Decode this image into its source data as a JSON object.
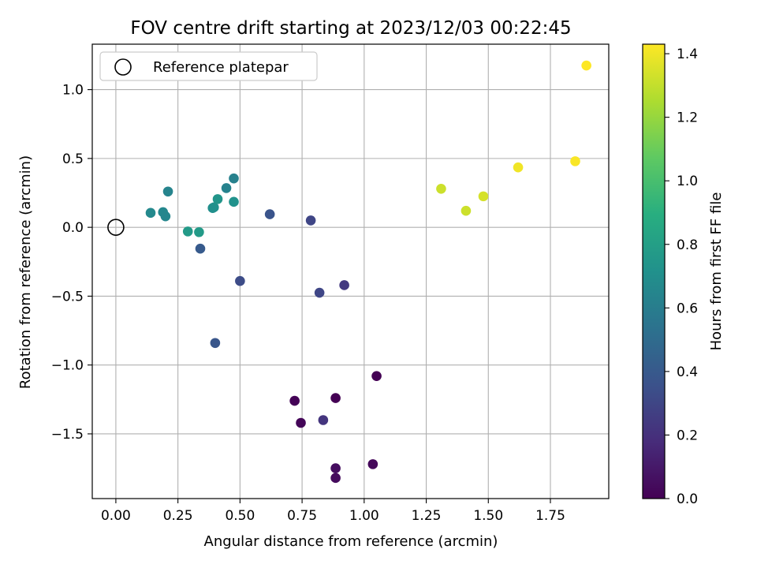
{
  "chart_data": {
    "type": "scatter",
    "title": "FOV centre drift starting at 2023/12/03 00:22:45",
    "xlabel": "Angular distance from reference (arcmin)",
    "ylabel": "Rotation from reference (arcmin)",
    "xlim": [
      -0.095,
      1.985
    ],
    "ylim": [
      -1.97,
      1.33
    ],
    "xticks": [
      0.0,
      0.25,
      0.5,
      0.75,
      1.0,
      1.25,
      1.5,
      1.75
    ],
    "xtick_labels": [
      "0.00",
      "0.25",
      "0.50",
      "0.75",
      "1.00",
      "1.25",
      "1.50",
      "1.75"
    ],
    "yticks": [
      1.0,
      0.5,
      0.0,
      -0.5,
      -1.0,
      -1.5
    ],
    "ytick_labels": [
      "1.0",
      "0.5",
      "0.0",
      "−0.5",
      "−1.0",
      "−1.5"
    ],
    "grid": true,
    "legend": {
      "placement": "top-left",
      "entries": [
        "Reference platepar"
      ]
    },
    "reference_point": {
      "x": 0.0,
      "y": 0.0,
      "marker": "open-circle"
    },
    "colorbar": {
      "label": "Hours from first FF file",
      "colormap": "viridis",
      "range": [
        0.0,
        1.43
      ],
      "ticks": [
        0.0,
        0.2,
        0.4,
        0.6,
        0.8,
        1.0,
        1.2,
        1.4
      ],
      "tick_labels": [
        "0.0",
        "0.2",
        "0.4",
        "0.6",
        "0.8",
        "1.0",
        "1.2",
        "1.4"
      ]
    },
    "points": [
      {
        "x": 0.885,
        "y": -1.82,
        "c": 0.04
      },
      {
        "x": 0.885,
        "y": -1.75,
        "c": 0.05
      },
      {
        "x": 1.035,
        "y": -1.72,
        "c": 0.03
      },
      {
        "x": 0.745,
        "y": -1.42,
        "c": 0.02
      },
      {
        "x": 0.72,
        "y": -1.26,
        "c": 0.01
      },
      {
        "x": 0.885,
        "y": -1.24,
        "c": 0.0
      },
      {
        "x": 1.05,
        "y": -1.08,
        "c": 0.0
      },
      {
        "x": 0.835,
        "y": -1.4,
        "c": 0.22
      },
      {
        "x": 0.4,
        "y": -0.84,
        "c": 0.38
      },
      {
        "x": 0.5,
        "y": -0.39,
        "c": 0.33
      },
      {
        "x": 0.82,
        "y": -0.475,
        "c": 0.3
      },
      {
        "x": 0.92,
        "y": -0.42,
        "c": 0.24
      },
      {
        "x": 0.34,
        "y": -0.155,
        "c": 0.4
      },
      {
        "x": 0.62,
        "y": 0.095,
        "c": 0.37
      },
      {
        "x": 0.785,
        "y": 0.05,
        "c": 0.3
      },
      {
        "x": 0.29,
        "y": -0.03,
        "c": 0.77
      },
      {
        "x": 0.335,
        "y": -0.035,
        "c": 0.77
      },
      {
        "x": 0.14,
        "y": 0.105,
        "c": 0.67
      },
      {
        "x": 0.19,
        "y": 0.11,
        "c": 0.66
      },
      {
        "x": 0.2,
        "y": 0.08,
        "c": 0.65
      },
      {
        "x": 0.21,
        "y": 0.26,
        "c": 0.64
      },
      {
        "x": 0.39,
        "y": 0.14,
        "c": 0.7
      },
      {
        "x": 0.395,
        "y": 0.145,
        "c": 0.71
      },
      {
        "x": 0.41,
        "y": 0.205,
        "c": 0.74
      },
      {
        "x": 0.445,
        "y": 0.285,
        "c": 0.63
      },
      {
        "x": 0.475,
        "y": 0.185,
        "c": 0.72
      },
      {
        "x": 0.475,
        "y": 0.355,
        "c": 0.62
      },
      {
        "x": 1.31,
        "y": 0.28,
        "c": 1.32
      },
      {
        "x": 1.41,
        "y": 0.12,
        "c": 1.32
      },
      {
        "x": 1.48,
        "y": 0.225,
        "c": 1.34
      },
      {
        "x": 1.62,
        "y": 0.435,
        "c": 1.4
      },
      {
        "x": 1.85,
        "y": 0.48,
        "c": 1.42
      },
      {
        "x": 1.895,
        "y": 1.175,
        "c": 1.43
      }
    ]
  }
}
